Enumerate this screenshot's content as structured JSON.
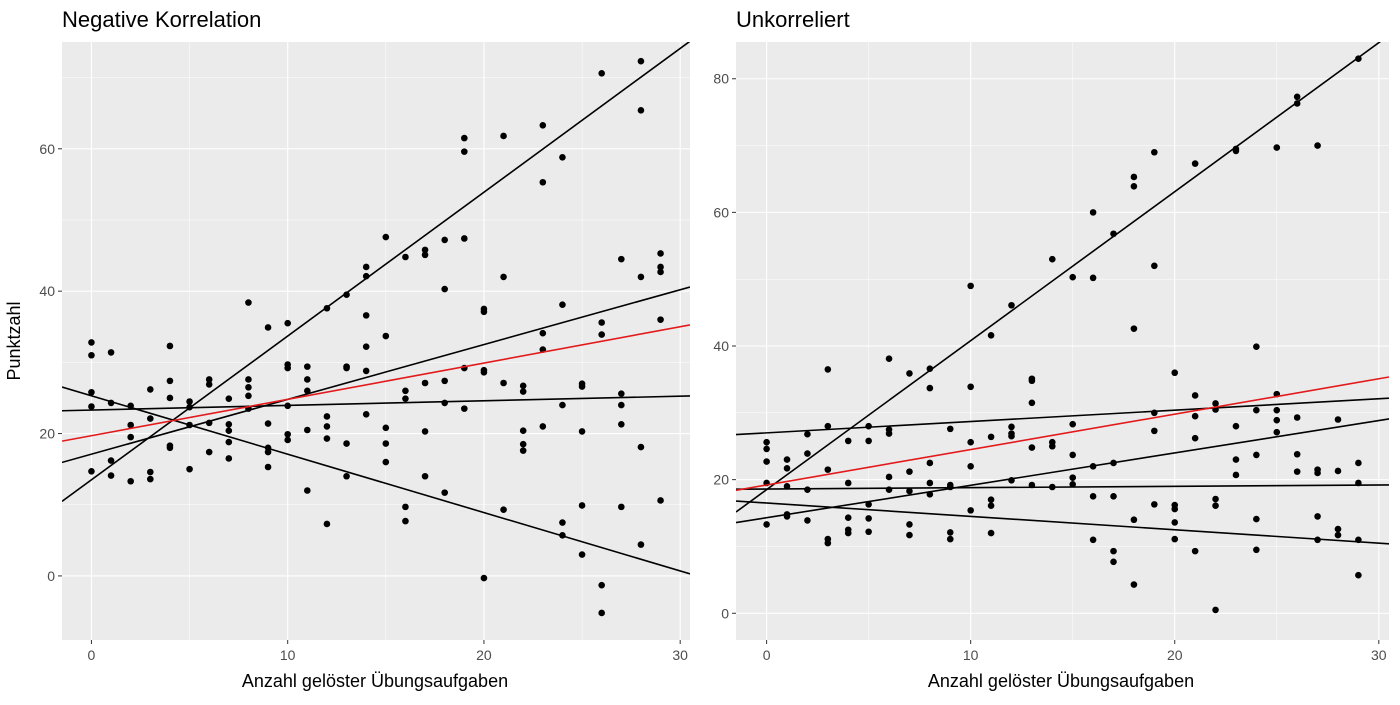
{
  "chart_data": [
    {
      "type": "scatter",
      "title": "Negative Korrelation",
      "xlabel": "Anzahl gelöster Übungsaufgaben",
      "ylabel": "Punktzahl",
      "xlim": [
        -1.5,
        30.5
      ],
      "ylim": [
        -9,
        75
      ],
      "x_ticks": [
        0,
        10,
        20,
        30
      ],
      "y_ticks": [
        0,
        20,
        40,
        60
      ],
      "grid": true,
      "points": [
        [
          0,
          32.8
        ],
        [
          0,
          31
        ],
        [
          0,
          25.8
        ],
        [
          0,
          23.8
        ],
        [
          0,
          14.7
        ],
        [
          1,
          31.4
        ],
        [
          1,
          24.3
        ],
        [
          1,
          16.2
        ],
        [
          1,
          14.1
        ],
        [
          2,
          23.9
        ],
        [
          2,
          21.2
        ],
        [
          2,
          19.5
        ],
        [
          2,
          13.3
        ],
        [
          3,
          26.2
        ],
        [
          3,
          22.1
        ],
        [
          3,
          14.6
        ],
        [
          3,
          13.6
        ],
        [
          4,
          32.3
        ],
        [
          4,
          27.4
        ],
        [
          4,
          25
        ],
        [
          4,
          18.3
        ],
        [
          4,
          18
        ],
        [
          5,
          24.5
        ],
        [
          5,
          23.7
        ],
        [
          5,
          21.2
        ],
        [
          5,
          15
        ],
        [
          6,
          27.6
        ],
        [
          6,
          26.9
        ],
        [
          6,
          21.5
        ],
        [
          6,
          17.4
        ],
        [
          7,
          24.9
        ],
        [
          7,
          21.3
        ],
        [
          7,
          20.4
        ],
        [
          7,
          18.8
        ],
        [
          7,
          16.5
        ],
        [
          8,
          38.4
        ],
        [
          8,
          27.6
        ],
        [
          8,
          26.5
        ],
        [
          8,
          25.3
        ],
        [
          8,
          23.5
        ],
        [
          9,
          34.9
        ],
        [
          9,
          21.4
        ],
        [
          9,
          18
        ],
        [
          9,
          17.4
        ],
        [
          9,
          15.3
        ],
        [
          10,
          35.5
        ],
        [
          10,
          29.7
        ],
        [
          10,
          29.2
        ],
        [
          10,
          23.9
        ],
        [
          10,
          19.9
        ],
        [
          10,
          19.1
        ],
        [
          11,
          29.4
        ],
        [
          11,
          27.6
        ],
        [
          11,
          26
        ],
        [
          11,
          20.5
        ],
        [
          11,
          12
        ],
        [
          12,
          37.6
        ],
        [
          12,
          22.4
        ],
        [
          12,
          21
        ],
        [
          12,
          19.3
        ],
        [
          12,
          7.3
        ],
        [
          13,
          39.5
        ],
        [
          13,
          29.4
        ],
        [
          13,
          29.2
        ],
        [
          13,
          18.6
        ],
        [
          13,
          14
        ],
        [
          14,
          43.4
        ],
        [
          14,
          42.1
        ],
        [
          14,
          36.6
        ],
        [
          14,
          32.2
        ],
        [
          14,
          28.8
        ],
        [
          14,
          22.7
        ],
        [
          15,
          47.6
        ],
        [
          15,
          33.7
        ],
        [
          15,
          20.8
        ],
        [
          15,
          18.6
        ],
        [
          15,
          16
        ],
        [
          16,
          44.8
        ],
        [
          16,
          26
        ],
        [
          16,
          24.9
        ],
        [
          16,
          9.7
        ],
        [
          16,
          7.7
        ],
        [
          17,
          45.8
        ],
        [
          17,
          45.1
        ],
        [
          17,
          27.1
        ],
        [
          17,
          20.3
        ],
        [
          17,
          14
        ],
        [
          18,
          47.2
        ],
        [
          18,
          40.3
        ],
        [
          18,
          27.4
        ],
        [
          18,
          24.3
        ],
        [
          18,
          11.7
        ],
        [
          19,
          61.5
        ],
        [
          19,
          59.6
        ],
        [
          19,
          47.4
        ],
        [
          19,
          29.2
        ],
        [
          19,
          23.5
        ],
        [
          20,
          37.5
        ],
        [
          20,
          37.1
        ],
        [
          20,
          28.9
        ],
        [
          20,
          28.6
        ],
        [
          20,
          -0.3
        ],
        [
          21,
          61.8
        ],
        [
          21,
          42
        ],
        [
          21,
          27.1
        ],
        [
          21,
          9.3
        ],
        [
          22,
          26.7
        ],
        [
          22,
          25.9
        ],
        [
          22,
          20.4
        ],
        [
          22,
          18.5
        ],
        [
          22,
          17.6
        ],
        [
          23,
          63.3
        ],
        [
          23,
          55.3
        ],
        [
          23,
          34.1
        ],
        [
          23,
          31.8
        ],
        [
          23,
          21
        ],
        [
          24,
          58.8
        ],
        [
          24,
          38.1
        ],
        [
          24,
          24
        ],
        [
          24,
          7.5
        ],
        [
          24,
          5.7
        ],
        [
          25,
          27
        ],
        [
          25,
          26.6
        ],
        [
          25,
          20.3
        ],
        [
          25,
          9.9
        ],
        [
          25,
          3
        ],
        [
          26,
          70.6
        ],
        [
          26,
          35.6
        ],
        [
          26,
          33.9
        ],
        [
          26,
          -1.3
        ],
        [
          26,
          -5.2
        ],
        [
          27,
          44.5
        ],
        [
          27,
          25.6
        ],
        [
          27,
          24
        ],
        [
          27,
          21.3
        ],
        [
          27,
          9.7
        ],
        [
          28,
          72.3
        ],
        [
          28,
          65.4
        ],
        [
          28,
          42
        ],
        [
          28,
          18.1
        ],
        [
          28,
          4.4
        ],
        [
          29,
          45.3
        ],
        [
          29,
          43.4
        ],
        [
          29,
          42.7
        ],
        [
          29,
          36
        ],
        [
          29,
          10.6
        ]
      ],
      "lines": [
        {
          "color": "#000000",
          "intercept": 13.5,
          "slope": 2.02
        },
        {
          "color": "#000000",
          "intercept": 17.1,
          "slope": 0.77
        },
        {
          "color": "#000000",
          "intercept": 23.3,
          "slope": 0.065
        },
        {
          "color": "#000000",
          "intercept": 25.3,
          "slope": -0.82
        },
        {
          "color": "#e31a1c",
          "intercept": 19.7,
          "slope": 0.51
        }
      ]
    },
    {
      "type": "scatter",
      "title": "Unkorreliert",
      "xlabel": "Anzahl gelöster Übungsaufgaben",
      "ylabel": "",
      "xlim": [
        -1.5,
        30.5
      ],
      "ylim": [
        -4,
        85.5
      ],
      "x_ticks": [
        0,
        10,
        20,
        30
      ],
      "y_ticks": [
        0,
        20,
        40,
        60,
        80
      ],
      "grid": true,
      "points": [
        [
          0,
          25.6
        ],
        [
          0,
          24.6
        ],
        [
          0,
          22.7
        ],
        [
          0,
          19.5
        ],
        [
          0,
          13.3
        ],
        [
          1,
          23
        ],
        [
          1,
          21.7
        ],
        [
          1,
          19
        ],
        [
          1,
          14.8
        ],
        [
          1,
          14.5
        ],
        [
          2,
          26.8
        ],
        [
          2,
          23.9
        ],
        [
          2,
          18.5
        ],
        [
          2,
          13.9
        ],
        [
          3,
          36.5
        ],
        [
          3,
          28
        ],
        [
          3,
          21.5
        ],
        [
          3,
          11.1
        ],
        [
          3,
          10.5
        ],
        [
          4,
          25.8
        ],
        [
          4,
          19.5
        ],
        [
          4,
          14.3
        ],
        [
          4,
          12.5
        ],
        [
          4,
          12
        ],
        [
          5,
          28
        ],
        [
          5,
          25.8
        ],
        [
          5,
          16.3
        ],
        [
          5,
          14.2
        ],
        [
          5,
          12.2
        ],
        [
          6,
          38.1
        ],
        [
          6,
          27.5
        ],
        [
          6,
          26.9
        ],
        [
          6,
          20.4
        ],
        [
          6,
          18.5
        ],
        [
          7,
          35.9
        ],
        [
          7,
          21.2
        ],
        [
          7,
          18.3
        ],
        [
          7,
          13.3
        ],
        [
          7,
          11.7
        ],
        [
          8,
          36.6
        ],
        [
          8,
          33.7
        ],
        [
          8,
          22.5
        ],
        [
          8,
          19.5
        ],
        [
          8,
          17.8
        ],
        [
          9,
          27.6
        ],
        [
          9,
          19.2
        ],
        [
          9,
          18.9
        ],
        [
          9,
          12.1
        ],
        [
          9,
          11.1
        ],
        [
          10,
          49
        ],
        [
          10,
          33.9
        ],
        [
          10,
          25.6
        ],
        [
          10,
          22
        ],
        [
          10,
          15.4
        ],
        [
          11,
          41.6
        ],
        [
          11,
          26.4
        ],
        [
          11,
          17
        ],
        [
          11,
          16.1
        ],
        [
          11,
          12
        ],
        [
          12,
          46.1
        ],
        [
          12,
          27.9
        ],
        [
          12,
          26.9
        ],
        [
          12,
          26.5
        ],
        [
          12,
          19.9
        ],
        [
          13,
          35.1
        ],
        [
          13,
          34.8
        ],
        [
          13,
          31.5
        ],
        [
          13,
          24.8
        ],
        [
          13,
          19.2
        ],
        [
          14,
          53
        ],
        [
          14,
          25.6
        ],
        [
          14,
          25
        ],
        [
          14,
          18.9
        ],
        [
          15,
          50.3
        ],
        [
          15,
          28.3
        ],
        [
          15,
          23.7
        ],
        [
          15,
          20.3
        ],
        [
          15,
          19.3
        ],
        [
          16,
          60
        ],
        [
          16,
          50.2
        ],
        [
          16,
          22
        ],
        [
          16,
          17.5
        ],
        [
          16,
          11
        ],
        [
          17,
          56.8
        ],
        [
          17,
          22.5
        ],
        [
          17,
          17.5
        ],
        [
          17,
          9.3
        ],
        [
          17,
          7.7
        ],
        [
          18,
          65.3
        ],
        [
          18,
          63.9
        ],
        [
          18,
          42.6
        ],
        [
          18,
          14
        ],
        [
          18,
          4.3
        ],
        [
          19,
          69
        ],
        [
          19,
          52
        ],
        [
          19,
          30
        ],
        [
          19,
          27.3
        ],
        [
          19,
          16.3
        ],
        [
          20,
          36
        ],
        [
          20,
          16.2
        ],
        [
          20,
          15.6
        ],
        [
          20,
          13.6
        ],
        [
          20,
          11.1
        ],
        [
          21,
          67.3
        ],
        [
          21,
          32.6
        ],
        [
          21,
          29.5
        ],
        [
          21,
          26.2
        ],
        [
          21,
          9.3
        ],
        [
          22,
          31.4
        ],
        [
          22,
          30.5
        ],
        [
          22,
          17.1
        ],
        [
          22,
          16.1
        ],
        [
          22,
          0.5
        ],
        [
          23,
          69.5
        ],
        [
          23,
          69.2
        ],
        [
          23,
          28
        ],
        [
          23,
          23
        ],
        [
          23,
          20.7
        ],
        [
          24,
          39.9
        ],
        [
          24,
          30.4
        ],
        [
          24,
          23.7
        ],
        [
          24,
          14.1
        ],
        [
          24,
          9.5
        ],
        [
          25,
          69.7
        ],
        [
          25,
          32.8
        ],
        [
          25,
          30.4
        ],
        [
          25,
          28.9
        ],
        [
          25,
          27.1
        ],
        [
          26,
          77.3
        ],
        [
          26,
          76.3
        ],
        [
          26,
          29.3
        ],
        [
          26,
          23.8
        ],
        [
          26,
          21.2
        ],
        [
          27,
          70
        ],
        [
          27,
          21.5
        ],
        [
          27,
          21
        ],
        [
          27,
          14.5
        ],
        [
          27,
          11
        ],
        [
          28,
          29
        ],
        [
          28,
          21.3
        ],
        [
          28,
          12.6
        ],
        [
          28,
          11.7
        ],
        [
          29,
          83
        ],
        [
          29,
          22.5
        ],
        [
          29,
          19.5
        ],
        [
          29,
          11
        ],
        [
          29,
          5.7
        ]
      ],
      "lines": [
        {
          "color": "#000000",
          "intercept": 18.5,
          "slope": 2.23
        },
        {
          "color": "#000000",
          "intercept": 27.0,
          "slope": 0.17
        },
        {
          "color": "#000000",
          "intercept": 18.6,
          "slope": 0.02
        },
        {
          "color": "#000000",
          "intercept": 14.3,
          "slope": 0.485
        },
        {
          "color": "#000000",
          "intercept": 16.5,
          "slope": -0.2
        },
        {
          "color": "#e31a1c",
          "intercept": 19.2,
          "slope": 0.53
        }
      ]
    }
  ]
}
